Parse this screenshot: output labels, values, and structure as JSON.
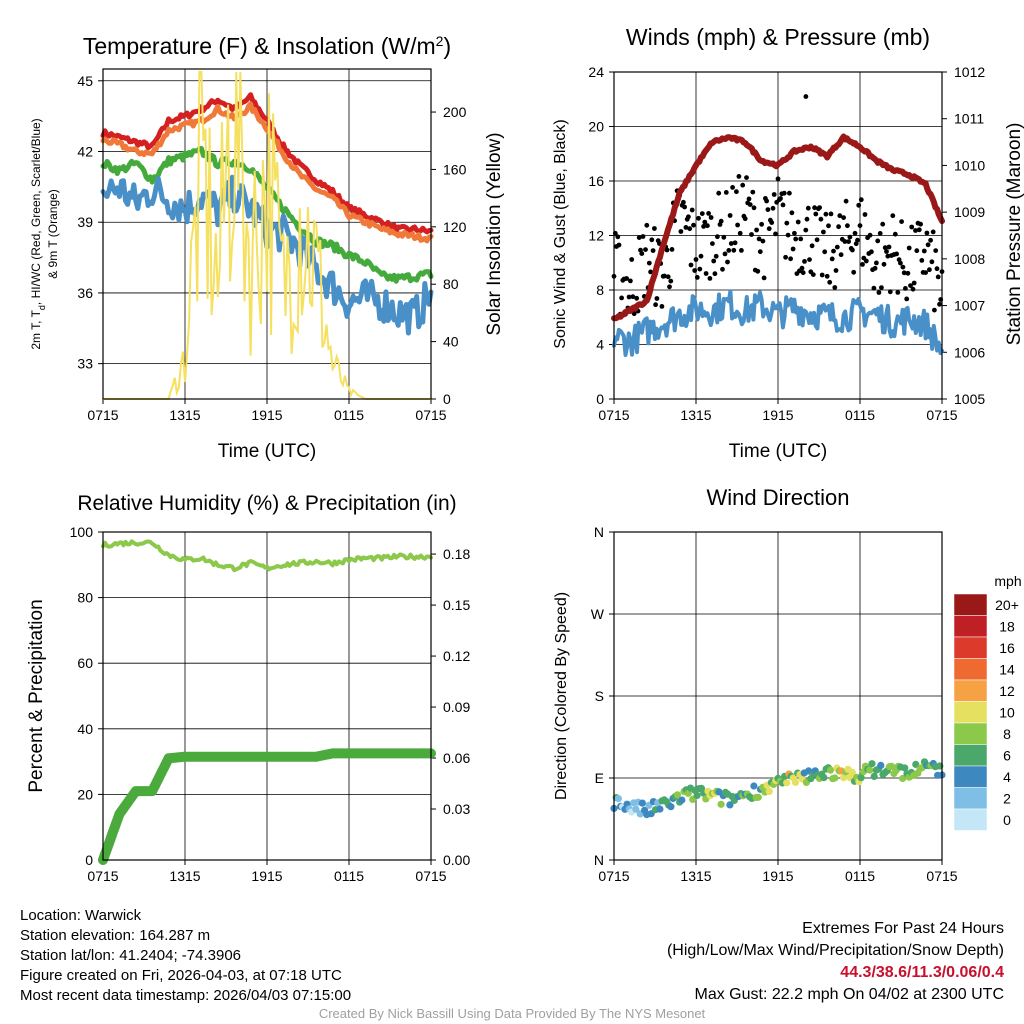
{
  "chart_data": [
    {
      "id": "temp",
      "type": "line",
      "title": "Temperature (F) & Insolation (W/m",
      "title_sup": "2",
      "title_tail": ")",
      "xlabel": "Time (UTC)",
      "ylabel_lines": [
        "2m T, T",
        "d",
        ", HI/WC (Red, Green, Scarlet/Blue)",
        "& 9m T (Orange)"
      ],
      "ylabel_right": "Solar Insolation (Yellow)",
      "x_ticks": [
        "0715",
        "1315",
        "1915",
        "0115",
        "0715"
      ],
      "ylim": [
        31.5,
        45.5
      ],
      "yticks": [
        33,
        36,
        39,
        42,
        45
      ],
      "ylim_right": [
        0,
        230
      ],
      "yticks_right": [
        0,
        40,
        80,
        120,
        160,
        200
      ],
      "grid": true,
      "series": [
        {
          "name": "2m T",
          "color": "#d42020",
          "width": 5,
          "axis": "left",
          "values": [
            42.8,
            42.6,
            42.4,
            42.2,
            43.3,
            43.5,
            43.8,
            44.2,
            43.8,
            44.3,
            43.3,
            42.2,
            41.4,
            40.8,
            40.3,
            39.6,
            39.3,
            39.0,
            38.7,
            38.7,
            38.6
          ]
        },
        {
          "name": "9m T",
          "color": "#f07838",
          "width": 5,
          "axis": "left",
          "values": [
            42.5,
            42.3,
            42.0,
            41.9,
            42.9,
            43.1,
            43.3,
            43.8,
            43.4,
            43.9,
            43.0,
            41.9,
            41.0,
            40.4,
            40.0,
            39.3,
            39.0,
            38.7,
            38.5,
            38.4,
            38.3
          ]
        },
        {
          "name": "Td",
          "color": "#44aa3c",
          "width": 5,
          "axis": "left",
          "values": [
            41.5,
            41.2,
            41.5,
            40.8,
            41.6,
            41.8,
            42.0,
            41.5,
            41.6,
            41.3,
            40.4,
            39.6,
            38.8,
            38.2,
            38.0,
            37.6,
            37.3,
            36.7,
            36.6,
            36.7,
            36.8
          ]
        },
        {
          "name": "HI/WC",
          "color": "#4a90c8",
          "width": 5,
          "axis": "left",
          "values": [
            40.2,
            40.5,
            39.8,
            40.4,
            40.0,
            39.6,
            40.1,
            39.5,
            40.2,
            39.6,
            38.7,
            38.5,
            37.9,
            37.0,
            36.3,
            35.6,
            35.8,
            35.6,
            35.2,
            35.0,
            36.0
          ]
        },
        {
          "name": "Solar Insolation",
          "color": "#f5e060",
          "width": 2,
          "axis": "right",
          "values": [
            0,
            0,
            0,
            0,
            0,
            28,
            165,
            80,
            220,
            95,
            155,
            78,
            130,
            90,
            24,
            5,
            0,
            0,
            0,
            0,
            0
          ]
        }
      ]
    },
    {
      "id": "wind",
      "type": "line",
      "title": "Winds (mph) & Pressure (mb)",
      "xlabel": "Time (UTC)",
      "ylabel": "Sonic Wind & Gust (Blue, Black)",
      "ylabel_right": "Station Pressure (Maroon)",
      "x_ticks": [
        "0715",
        "1315",
        "1915",
        "0115",
        "0715"
      ],
      "ylim": [
        0,
        24
      ],
      "yticks": [
        0,
        4,
        8,
        12,
        16,
        20,
        24
      ],
      "ylim_right": [
        1005,
        1012
      ],
      "yticks_right": [
        1005,
        1006,
        1007,
        1008,
        1009,
        1010,
        1011,
        1012
      ],
      "grid": true,
      "series": [
        {
          "name": "Sonic Wind",
          "color": "#4a90c8",
          "width": 4,
          "axis": "left",
          "values": [
            4.6,
            4.2,
            5.0,
            5.6,
            6.2,
            6.6,
            6.5,
            7.0,
            6.4,
            6.9,
            6.2,
            6.7,
            6.3,
            6.1,
            6.0,
            6.4,
            6.2,
            5.6,
            5.9,
            5.5,
            3.5
          ]
        },
        {
          "name": "Station Pressure",
          "color": "#9a1818",
          "width": 6,
          "axis": "right",
          "values": [
            1006.7,
            1006.9,
            1007.1,
            1008.3,
            1009.4,
            1010.0,
            1010.5,
            1010.6,
            1010.5,
            1010.1,
            1010.0,
            1010.3,
            1010.4,
            1010.2,
            1010.6,
            1010.4,
            1010.1,
            1009.9,
            1009.8,
            1009.6,
            1008.8
          ]
        }
      ],
      "gust_points": {
        "name": "Gust",
        "color": "#000000",
        "values": [
          9.5,
          8.0,
          10.5,
          9.0,
          13.5,
          11.0,
          12.0,
          12.5,
          14.0,
          11.5,
          13.5,
          12.0,
          12.0,
          10.5,
          11.5,
          12.5,
          10.0,
          11.0,
          9.5,
          11.0,
          7.5
        ],
        "max": {
          "value": 22.2,
          "position": 11.7
        }
      }
    },
    {
      "id": "rh",
      "type": "line",
      "title": "Relative Humidity (%) & Precipitation (in)",
      "ylabel": "Percent & Precipitation",
      "x_ticks": [
        "0715",
        "1315",
        "1915",
        "0115",
        "0715"
      ],
      "ylim": [
        0,
        100
      ],
      "yticks": [
        0,
        20,
        40,
        60,
        80,
        100
      ],
      "ylim_right": [
        0,
        0.193
      ],
      "yticks_right": [
        "0.00",
        "0.03",
        "0.06",
        "0.09",
        "0.12",
        "0.15",
        "0.18"
      ],
      "grid": true,
      "series": [
        {
          "name": "Relative Humidity",
          "color": "#8cc84a",
          "width": 4,
          "axis": "left",
          "values": [
            96,
            96.5,
            96.8,
            96.8,
            93,
            91.5,
            92,
            90,
            89,
            90.5,
            89,
            90,
            90.5,
            91,
            90.5,
            91.5,
            92,
            92,
            92.5,
            92.5,
            92.5
          ]
        },
        {
          "name": "Precipitation",
          "color": "#4aaa3c",
          "width": 10,
          "axis": "left",
          "values": [
            0,
            14,
            21,
            21,
            31,
            31.5,
            31.5,
            31.5,
            31.5,
            31.5,
            31.5,
            31.5,
            31.5,
            31.5,
            32.5,
            32.5,
            32.5,
            32.5,
            32.5,
            32.5,
            32.5
          ]
        }
      ]
    },
    {
      "id": "wdir",
      "type": "scatter",
      "title": "Wind Direction",
      "ylabel": "Direction (Colored By Speed)",
      "x_ticks": [
        "0715",
        "1315",
        "1915",
        "0115",
        "0715"
      ],
      "ylim": [
        0,
        360
      ],
      "yticks": [
        "N",
        "E",
        "S",
        "W",
        "N"
      ],
      "grid": true,
      "directions": [
        64,
        58,
        54,
        60,
        68,
        74,
        70,
        66,
        72,
        78,
        84,
        88,
        92,
        98,
        92,
        94,
        100,
        98,
        96,
        102,
        100
      ],
      "speeds": [
        4,
        2,
        3,
        5,
        6,
        7,
        8,
        4,
        6,
        7,
        8,
        9,
        6,
        7,
        10,
        8,
        6,
        9,
        5,
        7,
        4
      ],
      "legend": {
        "title": "mph",
        "labels": [
          "20+",
          "18",
          "16",
          "14",
          "12",
          "10",
          "8",
          "6",
          "4",
          "2",
          "0"
        ],
        "colors": [
          "#9a1818",
          "#bf2026",
          "#dc3a2a",
          "#ef6a30",
          "#f7a145",
          "#e6e060",
          "#8cc84a",
          "#4aa86a",
          "#3e88c0",
          "#7fbfe6",
          "#c4e7f8"
        ]
      }
    }
  ],
  "info": {
    "location": "Location: Warwick",
    "elevation": "Station elevation: 164.287 m",
    "latlon": "Station lat/lon: 41.2404; -74.3906",
    "created": "Figure created on Fri, 2026-04-03, at 07:18 UTC",
    "recent": "Most recent data timestamp: 2026/04/03 07:15:00",
    "extremes_title": "Extremes For Past 24 Hours",
    "extremes_subtitle": "(High/Low/Max Wind/Precipitation/Snow Depth)",
    "extremes_values": "44.3/38.6/11.3/0.06/0.4",
    "max_gust": "Max Gust: 22.2 mph On 04/02 at 2300 UTC",
    "credit": "Created By Nick Bassill Using Data Provided By The NYS Mesonet"
  }
}
